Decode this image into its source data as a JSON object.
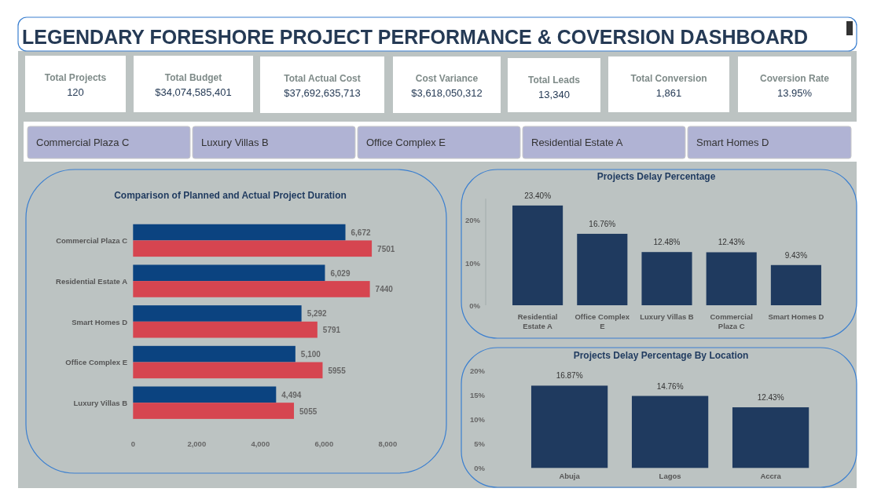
{
  "chart_data": [
    {
      "type": "other",
      "title": "LEGENDARY FORESHORE PROJECT PERFORMANCE & COVERSION DASHBOARD",
      "annotations": [
        "Total Projects",
        "120",
        "Total Budget",
        "$34,074,585,401",
        "Total Actual Cost",
        "$37,692,635,713",
        "Cost Variance",
        "$3,618,050,312",
        "Total Leads",
        "13,340",
        "Total Conversion",
        "1,861",
        "Coversion Rate",
        "13.95%"
      ]
    },
    {
      "type": "other",
      "annotations": [
        "Commercial Plaza C",
        "Luxury Villas B",
        "Office Complex E",
        "Residential Estate A",
        "Smart Homes D"
      ]
    },
    {
      "type": "bar",
      "orientation": "horizontal",
      "title": "Comparison of Planned and Actual Project Duration",
      "categories": [
        "Commercial Plaza C",
        "Residential Estate A",
        "Smart Homes D",
        "Office Complex E",
        "Luxury Villas B"
      ],
      "series": [
        {
          "color": "#0b4380",
          "values": [
            6672,
            6029,
            5292,
            5100,
            4494
          ],
          "value_labels": [
            "6,672",
            "6,029",
            "5,292",
            "5,100",
            "4,494"
          ]
        },
        {
          "color": "#d64550",
          "values": [
            7501,
            7440,
            5791,
            5955,
            5055
          ],
          "value_labels": [
            "7501",
            "7440",
            "5791",
            "5955",
            "5055"
          ]
        }
      ],
      "xlim": [
        0,
        8000
      ],
      "xticks": [
        0,
        {
          "value": 2000,
          "label": "2,000"
        },
        {
          "value": 4000,
          "label": "4,000"
        },
        {
          "value": 6000,
          "label": "6,000"
        },
        {
          "value": 8000,
          "label": "8,000"
        }
      ]
    },
    {
      "type": "bar",
      "title": "Projects Delay Percentage",
      "categories": [
        "Residential Estate A",
        "Office Complex E",
        "Luxury Villas B",
        "Commercial Plaza C",
        "Smart Homes D"
      ],
      "values": [
        23.4,
        16.76,
        12.48,
        12.43,
        9.43
      ],
      "value_labels": [
        "23.40%",
        "16.76%",
        "12.48%",
        "12.43%",
        "9.43%"
      ],
      "color": "#1f3a5f",
      "ylim": [
        0,
        25
      ],
      "yticks": [
        {
          "value": 0,
          "label": "0%"
        },
        {
          "value": 10,
          "label": "10%"
        },
        {
          "value": 20,
          "label": "20%"
        }
      ]
    },
    {
      "type": "bar",
      "title": "Projects Delay Percentage By Location",
      "categories": [
        "Abuja",
        "Lagos",
        "Accra"
      ],
      "values": [
        16.87,
        14.76,
        12.43
      ],
      "value_labels": [
        "16.87%",
        "14.76%",
        "12.43%"
      ],
      "color": "#1f3a5f",
      "ylim": [
        0,
        20
      ],
      "yticks": [
        {
          "value": 0,
          "label": "0%"
        },
        {
          "value": 5,
          "label": "5%"
        },
        {
          "value": 10,
          "label": "10%"
        },
        {
          "value": 15,
          "label": "15%"
        },
        {
          "value": 20,
          "label": "20%"
        }
      ]
    }
  ]
}
